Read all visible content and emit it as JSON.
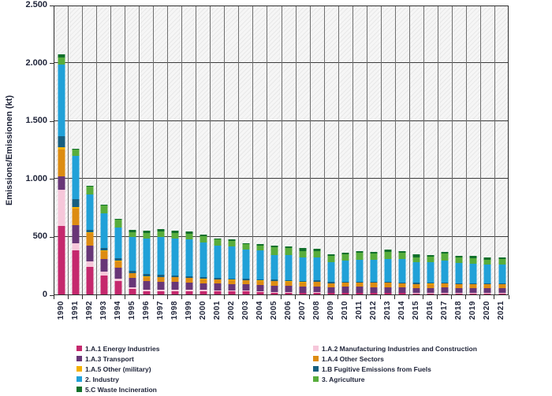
{
  "chart_data": {
    "type": "bar",
    "stacked": true,
    "title": "",
    "ylabel": "Emissions/Emissionen (kt)",
    "xlabel": "",
    "ylim": [
      0,
      2500
    ],
    "ytick_values": [
      0,
      500,
      1000,
      1500,
      2000,
      2500
    ],
    "ytick_labels": [
      "0",
      "500",
      "1.000",
      "1.500",
      "2.000",
      "2.500"
    ],
    "grid": "on",
    "legend_position": "bottom-two-columns",
    "categories": [
      "1990",
      "1991",
      "1992",
      "1993",
      "1994",
      "1995",
      "1996",
      "1997",
      "1998",
      "1999",
      "2000",
      "2001",
      "2002",
      "2003",
      "2004",
      "2005",
      "2006",
      "2007",
      "2008",
      "2009",
      "2010",
      "2011",
      "2012",
      "2013",
      "2014",
      "2015",
      "2016",
      "2017",
      "2018",
      "2019",
      "2020",
      "2021"
    ],
    "series": [
      {
        "name": "1.A.1 Energy Industries",
        "color": "#c5286d",
        "values": [
          590,
          380,
          240,
          160,
          115,
          48,
          27,
          27,
          27,
          28,
          30,
          28,
          27,
          25,
          22,
          15,
          15,
          13,
          14,
          12,
          13,
          13,
          12,
          12,
          11,
          10,
          10,
          10,
          9,
          9,
          8,
          8
        ]
      },
      {
        "name": "1.A.2 Manufacturing Industries and Construction",
        "color": "#f6c7da",
        "values": [
          315,
          65,
          45,
          34,
          23,
          14,
          12,
          14,
          12,
          10,
          9,
          9,
          8,
          8,
          8,
          4,
          4,
          4,
          4,
          4,
          4,
          4,
          4,
          4,
          4,
          3,
          3,
          3,
          3,
          3,
          3,
          3
        ]
      },
      {
        "name": "1.A.3 Transport",
        "color": "#683677",
        "values": [
          115,
          150,
          137,
          114,
          91,
          78,
          75,
          69,
          70,
          67,
          59,
          57,
          56,
          55,
          53,
          58,
          56,
          52,
          52,
          46,
          48,
          48,
          47,
          48,
          44,
          43,
          44,
          45,
          43,
          43,
          45,
          44
        ]
      },
      {
        "name": "1.A.4 Other Sectors",
        "color": "#dd8c12",
        "values": [
          228,
          148,
          105,
          69,
          57,
          43,
          39,
          38,
          40,
          38,
          32,
          33,
          33,
          34,
          34,
          38,
          37,
          36,
          38,
          34,
          36,
          36,
          36,
          37,
          35,
          33,
          34,
          35,
          33,
          33,
          32,
          32
        ]
      },
      {
        "name": "1.A.5 Other (military)",
        "color": "#f3b000",
        "values": [
          25,
          12,
          8,
          5,
          4,
          4,
          3,
          3,
          3,
          3,
          3,
          3,
          3,
          3,
          3,
          2,
          2,
          2,
          2,
          2,
          2,
          2,
          2,
          2,
          2,
          2,
          2,
          2,
          2,
          2,
          2,
          2
        ]
      },
      {
        "name": "1.B Fugitive Emissions from Fuels",
        "color": "#175f80",
        "values": [
          96,
          70,
          21,
          22,
          23,
          18,
          18,
          16,
          11,
          12,
          14,
          12,
          11,
          10,
          10,
          10,
          10,
          10,
          10,
          8,
          9,
          9,
          9,
          9,
          8,
          8,
          8,
          8,
          8,
          8,
          7,
          7
        ]
      },
      {
        "name": "2. Industry",
        "color": "#21a1d8",
        "values": [
          612,
          368,
          310,
          297,
          262,
          288,
          308,
          327,
          319,
          320,
          300,
          283,
          277,
          255,
          248,
          215,
          214,
          203,
          197,
          173,
          180,
          189,
          187,
          196,
          200,
          178,
          177,
          192,
          173,
          170,
          160,
          163
        ]
      },
      {
        "name": "3. Agriculture",
        "color": "#58ad3c",
        "values": [
          64,
          57,
          64,
          66,
          68,
          47,
          46,
          50,
          46,
          46,
          57,
          50,
          48,
          45,
          46,
          64,
          61,
          57,
          60,
          52,
          55,
          60,
          57,
          62,
          55,
          46,
          47,
          57,
          46,
          46,
          44,
          44
        ]
      },
      {
        "name": "5.C Waste Incineration",
        "color": "#11702b",
        "values": [
          30,
          5,
          8,
          8,
          12,
          20,
          23,
          23,
          23,
          20,
          10,
          11,
          10,
          10,
          10,
          17,
          19,
          22,
          15,
          16,
          14,
          16,
          16,
          18,
          18,
          22,
          18,
          18,
          18,
          17,
          17,
          15
        ]
      }
    ],
    "legend": {
      "columns": [
        [
          0,
          2,
          4,
          6,
          8
        ],
        [
          1,
          3,
          5,
          7
        ]
      ]
    }
  }
}
